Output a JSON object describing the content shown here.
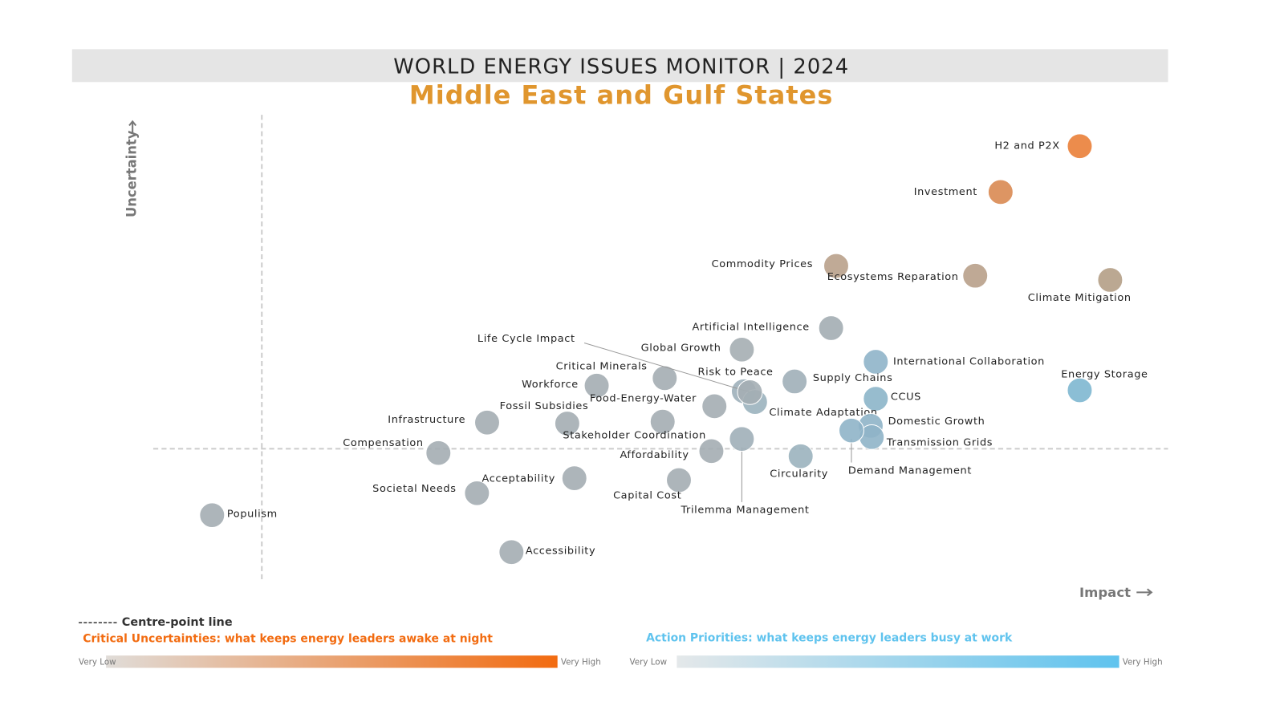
{
  "chart_data": {
    "type": "scatter",
    "title": "WORLD ENERGY ISSUES MONITOR | 2024",
    "subtitle": "Middle East and Gulf States",
    "x_label": "Impact",
    "y_label": "Uncertainty",
    "xlim": [
      0,
      100
    ],
    "ylim": [
      0,
      100
    ],
    "centre_point": {
      "x": 10.7,
      "y": 28.6
    },
    "labels": [
      "H2 and P2X",
      "Investment",
      "Commodity Prices",
      "Ecosystems Reparation",
      "Climate Mitigation",
      "Artificial Intelligence",
      "Global Growth",
      "International Collaboration",
      "Energy Storage",
      "Critical Minerals",
      "Workforce",
      "Risk to Peace",
      "Supply Chains",
      "CCUS",
      "Food-Energy-Water",
      "Climate Adaptation",
      "Life Cycle Impact",
      "Fossil Subsidies",
      "Infrastructure",
      "Stakeholder Coordination",
      "Domestic Growth",
      "Compensation",
      "Affordability",
      "Trilemma Management",
      "Transmission Grids",
      "Demand Management",
      "Circularity",
      "Acceptability",
      "Capital Cost",
      "Societal Needs",
      "Populism",
      "Accessibility"
    ],
    "x": [
      91.3,
      83.5,
      67.3,
      81.0,
      94.3,
      66.8,
      58.0,
      71.2,
      91.3,
      50.4,
      43.7,
      58.2,
      63.2,
      71.2,
      55.3,
      59.3,
      58.8,
      40.8,
      32.9,
      50.2,
      70.7,
      28.1,
      55.0,
      58.0,
      70.8,
      68.8,
      63.8,
      41.5,
      51.8,
      31.9,
      5.8,
      35.3
    ],
    "y": [
      93.3,
      83.5,
      67.7,
      65.6,
      64.7,
      54.4,
      49.8,
      47.2,
      41.1,
      43.7,
      42.1,
      40.9,
      43.0,
      39.3,
      37.7,
      38.6,
      40.7,
      34.0,
      34.2,
      34.4,
      33.5,
      27.7,
      28.1,
      30.7,
      31.1,
      32.5,
      27.0,
      22.3,
      21.9,
      19.1,
      14.4,
      6.5
    ],
    "colors": [
      "#ea7f38",
      "#d98a52",
      "#b9a18b",
      "#b8a08a",
      "#b49e86",
      "#a3adb3",
      "#a5aeb3",
      "#8fb4c9",
      "#7eb7d0",
      "#a4adb2",
      "#a4adb2",
      "#9fb0ba",
      "#a0afb8",
      "#8cb5c9",
      "#a4adb2",
      "#9bb2be",
      "#a4aeb4",
      "#a4adb2",
      "#a4adb2",
      "#a4adb2",
      "#8fb4c8",
      "#a4adb2",
      "#a4adb2",
      "#a0afb8",
      "#8fb4c8",
      "#8fb4c8",
      "#9bb2be",
      "#a4adb2",
      "#a4adb2",
      "#a4adb2",
      "#a4adb2",
      "#a4adb2"
    ],
    "legend": {
      "centre_line": "Centre-point line",
      "uncertainties": "Critical Uncertainties: what keeps energy leaders awake at night",
      "priorities": "Action Priorities: what keeps energy leaders busy at work",
      "low": "Very Low",
      "high": "Very High",
      "uncertainties_color": "#f26b10",
      "priorities_color": "#5fc3ee"
    }
  }
}
